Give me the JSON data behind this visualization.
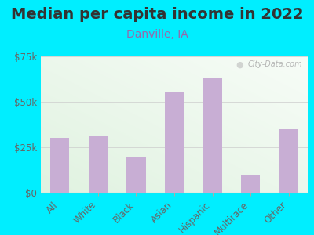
{
  "title": "Median per capita income in 2022",
  "subtitle": "Danville, IA",
  "categories": [
    "All",
    "White",
    "Black",
    "Asian",
    "Hispanic",
    "Multirace",
    "Other"
  ],
  "values": [
    30000,
    31500,
    20000,
    55000,
    63000,
    10000,
    35000
  ],
  "bar_color": "#c8aed4",
  "background_outer": "#00eeff",
  "title_color": "#333333",
  "subtitle_color": "#9966aa",
  "tick_label_color": "#666666",
  "ylim": [
    0,
    75000
  ],
  "yticks": [
    0,
    25000,
    50000,
    75000
  ],
  "ytick_labels": [
    "$0",
    "$25k",
    "$50k",
    "$75k"
  ],
  "watermark": "City-Data.com",
  "title_fontsize": 14,
  "subtitle_fontsize": 10,
  "tick_fontsize": 8.5
}
